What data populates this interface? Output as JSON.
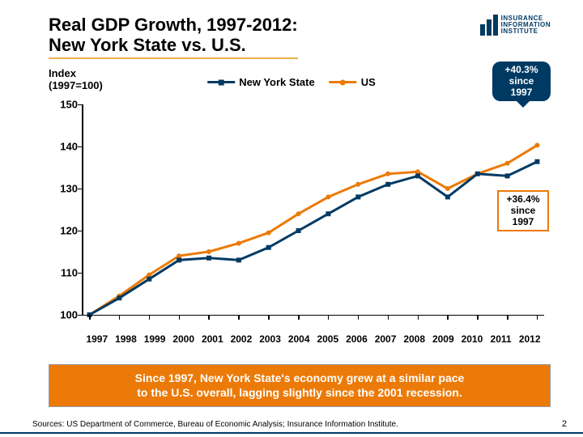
{
  "title_line1": "Real GDP Growth, 1997-2012:",
  "title_line2": "New York State vs. U.S.",
  "logo_text1": "INSURANCE",
  "logo_text2": "INFORMATION",
  "logo_text3": "INSTITUTE",
  "index_label1": "Index",
  "index_label2": "(1997=100)",
  "legend": {
    "ny": "New York State",
    "us": "US"
  },
  "callout1_l1": "+40.3%",
  "callout1_l2": "since",
  "callout1_l3": "1997",
  "callout2_l1": "+36.4%",
  "callout2_l2": "since",
  "callout2_l3": "1997",
  "banner_l1": "Since 1997, New York State's economy grew at a similar pace",
  "banner_l2": "to the U.S. overall, lagging slightly since the 2001 recession.",
  "sources": "Sources: US Department of Commerce, Bureau of Economic Analysis; Insurance Information Institute.",
  "pagenum": "2",
  "chart": {
    "type": "line",
    "x_categories": [
      "1997",
      "1998",
      "1999",
      "2000",
      "2001",
      "2002",
      "2003",
      "2004",
      "2005",
      "2006",
      "2007",
      "2008",
      "2009",
      "2010",
      "2011",
      "2012"
    ],
    "y_min": 100,
    "y_max": 150,
    "y_tick_step": 10,
    "series": [
      {
        "name": "ny",
        "color": "#003a63",
        "marker": "square",
        "values": [
          100,
          104,
          108.5,
          113,
          113.5,
          113,
          116,
          120,
          124,
          128,
          131,
          133,
          128,
          133.5,
          133,
          136.4
        ]
      },
      {
        "name": "us",
        "color": "#ec7a08",
        "marker": "circle",
        "values": [
          100,
          104.5,
          109.5,
          114,
          115,
          117,
          119.5,
          124,
          128,
          131,
          133.5,
          134,
          130,
          133.5,
          136,
          140.3
        ]
      }
    ],
    "line_width": 3,
    "marker_size": 6,
    "axis_color": "#000000",
    "background_color": "#ffffff",
    "title_fontsize": 22,
    "label_fontsize": 13
  }
}
